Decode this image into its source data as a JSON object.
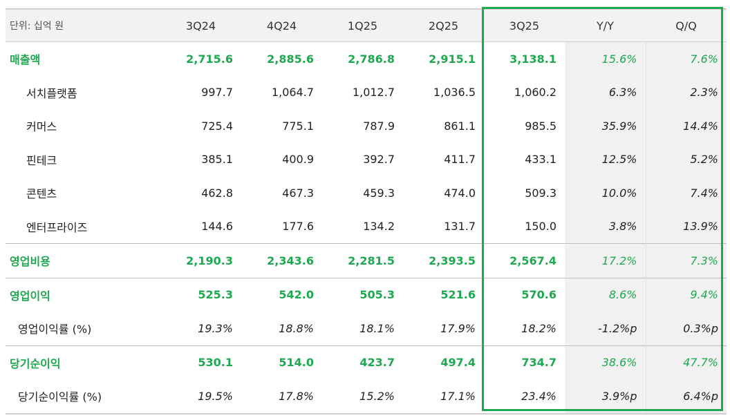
{
  "header": {
    "unit": "단위: 십억 원",
    "columns": [
      "3Q24",
      "4Q24",
      "1Q25",
      "2Q25",
      "3Q25",
      "Y/Y",
      "Q/Q"
    ]
  },
  "rows": [
    {
      "label": "매출액",
      "values": [
        "2,715.6",
        "2,885.6",
        "2,786.8",
        "2,915.1",
        "3,138.1",
        "15.6%",
        "7.6%"
      ]
    },
    {
      "label": "서치플랫폼",
      "values": [
        "997.7",
        "1,064.7",
        "1,012.7",
        "1,036.5",
        "1,060.2",
        "6.3%",
        "2.3%"
      ]
    },
    {
      "label": "커머스",
      "values": [
        "725.4",
        "775.1",
        "787.9",
        "861.1",
        "985.5",
        "35.9%",
        "14.4%"
      ]
    },
    {
      "label": "핀테크",
      "values": [
        "385.1",
        "400.9",
        "392.7",
        "411.7",
        "433.1",
        "12.5%",
        "5.2%"
      ]
    },
    {
      "label": "콘텐츠",
      "values": [
        "462.8",
        "467.3",
        "459.3",
        "474.0",
        "509.3",
        "10.0%",
        "7.4%"
      ]
    },
    {
      "label": "엔터프라이즈",
      "values": [
        "144.6",
        "177.6",
        "134.2",
        "131.7",
        "150.0",
        "3.8%",
        "13.9%"
      ]
    },
    {
      "label": "영업비용",
      "values": [
        "2,190.3",
        "2,343.6",
        "2,281.5",
        "2,393.5",
        "2,567.4",
        "17.2%",
        "7.3%"
      ]
    },
    {
      "label": "영업이익",
      "values": [
        "525.3",
        "542.0",
        "505.3",
        "521.6",
        "570.6",
        "8.6%",
        "9.4%"
      ]
    },
    {
      "label": "영업이익률 (%)",
      "values": [
        "19.3%",
        "18.8%",
        "18.1%",
        "17.9%",
        "18.2%",
        "-1.2%p",
        "0.3%p"
      ]
    },
    {
      "label": "당기순이익",
      "values": [
        "530.1",
        "514.0",
        "423.7",
        "497.4",
        "734.7",
        "38.6%",
        "47.7%"
      ]
    },
    {
      "label": "당기순이익률 (%)",
      "values": [
        "19.5%",
        "17.8%",
        "15.2%",
        "17.1%",
        "23.4%",
        "3.9%p",
        "6.4%p"
      ]
    }
  ],
  "colors": {
    "accent_green": "#1ea84f",
    "shade": "#f1f1f1",
    "header_bg": "#f2f2f2"
  }
}
